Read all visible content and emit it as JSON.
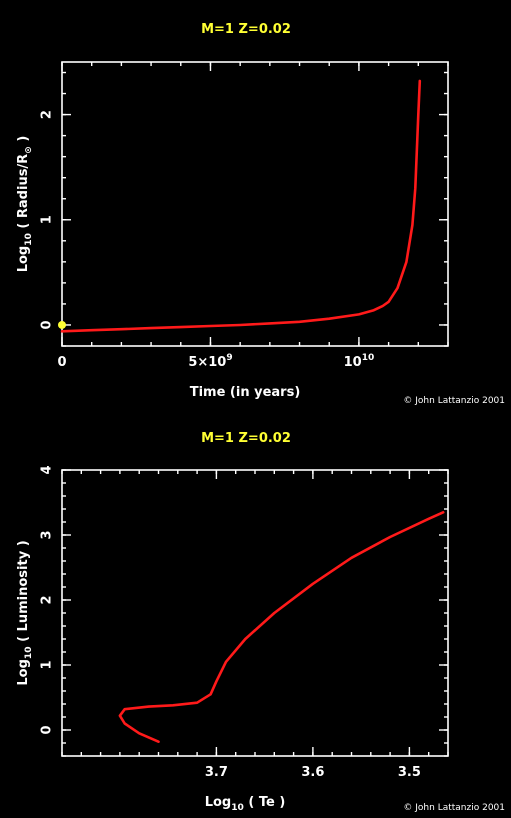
{
  "chart_data": [
    {
      "type": "line",
      "title": "M=1  Z=0.02",
      "xlabel": "Time (in years)",
      "ylabel_parts": [
        "Log",
        "10",
        " ( Radius/R",
        "⊙",
        " )"
      ],
      "xlim": [
        0,
        13000000000.0
      ],
      "ylim": [
        -0.2,
        2.5
      ],
      "x_ticks": [
        {
          "v": 0,
          "label": "0"
        },
        {
          "v": 5000000000.0,
          "label": "5×10",
          "sup": "9"
        },
        {
          "v": 10000000000.0,
          "label": "10",
          "sup": "10"
        }
      ],
      "y_ticks": [
        {
          "v": 0,
          "label": "0"
        },
        {
          "v": 1,
          "label": "1"
        },
        {
          "v": 2,
          "label": "2"
        }
      ],
      "series": [
        {
          "color": "#ff1a1a",
          "x": [
            0,
            1000000000.0,
            2000000000.0,
            3000000000.0,
            4000000000.0,
            5000000000.0,
            6000000000.0,
            7000000000.0,
            8000000000.0,
            9000000000.0,
            10000000000.0,
            10500000000.0,
            10800000000.0,
            11000000000.0,
            11300000000.0,
            11600000000.0,
            11800000000.0,
            11900000000.0,
            11950000000.0,
            12000000000.0,
            12050000000.0
          ],
          "y": [
            -0.06,
            -0.05,
            -0.04,
            -0.03,
            -0.02,
            -0.01,
            0.0,
            0.015,
            0.03,
            0.06,
            0.1,
            0.14,
            0.18,
            0.22,
            0.35,
            0.6,
            0.95,
            1.3,
            1.65,
            2.0,
            2.32
          ]
        }
      ],
      "marker": {
        "x": 0,
        "y": 0,
        "color": "#ffff33"
      },
      "credit": "© John Lattanzio 2001"
    },
    {
      "type": "line",
      "title": "M=1  Z=0.02",
      "xlabel_parts": [
        "Log",
        "10",
        " ( Te )"
      ],
      "ylabel_parts": [
        "Log",
        "10",
        " ( Luminosity )"
      ],
      "xlim": [
        3.86,
        3.46
      ],
      "ylim": [
        -0.4,
        4.0
      ],
      "x_ticks": [
        {
          "v": 3.7,
          "label": "3.7"
        },
        {
          "v": 3.6,
          "label": "3.6"
        },
        {
          "v": 3.5,
          "label": "3.5"
        }
      ],
      "y_ticks": [
        {
          "v": 0,
          "label": "0"
        },
        {
          "v": 1,
          "label": "1"
        },
        {
          "v": 2,
          "label": "2"
        },
        {
          "v": 3,
          "label": "3"
        },
        {
          "v": 4,
          "label": "4"
        }
      ],
      "series": [
        {
          "color": "#ff1a1a",
          "x": [
            3.76,
            3.78,
            3.795,
            3.8,
            3.795,
            3.77,
            3.745,
            3.72,
            3.706,
            3.7,
            3.69,
            3.67,
            3.64,
            3.6,
            3.56,
            3.52,
            3.48,
            3.465
          ],
          "y": [
            -0.18,
            -0.05,
            0.1,
            0.22,
            0.32,
            0.36,
            0.38,
            0.42,
            0.55,
            0.75,
            1.05,
            1.4,
            1.8,
            2.25,
            2.65,
            2.97,
            3.25,
            3.35
          ]
        }
      ],
      "credit": "© John Lattanzio 2001"
    }
  ]
}
